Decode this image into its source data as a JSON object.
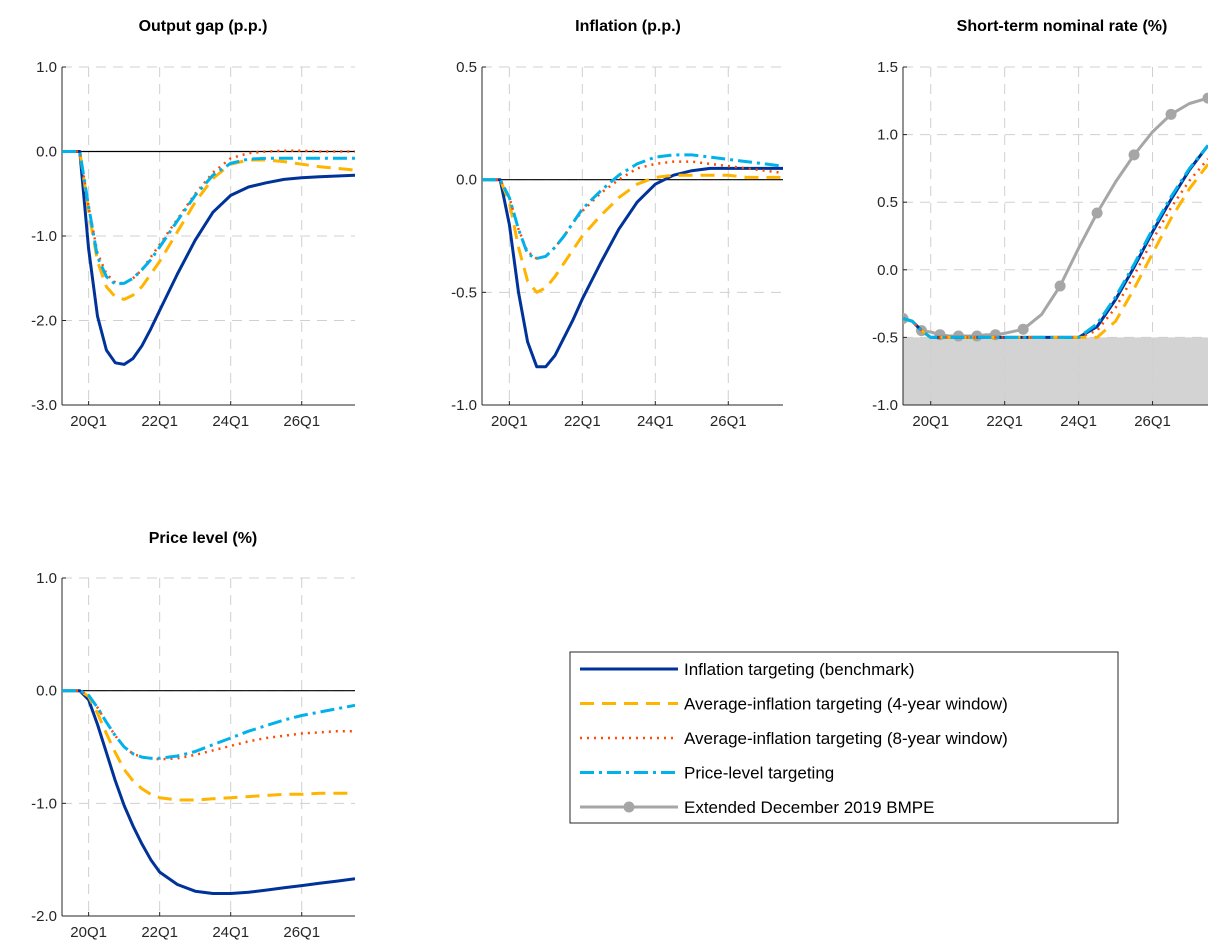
{
  "colors": {
    "inflation_targeting": "#003399",
    "ait_4y": "#FFB400",
    "ait_8y": "#FF4B00",
    "price_level": "#00B1EA",
    "bmpe": "#A6A6A6",
    "elb_shade": "#D3D3D3"
  },
  "legend": [
    {
      "label": "Inflation targeting (benchmark)",
      "key": "it",
      "style": "solid"
    },
    {
      "label": "Average-inflation targeting (4-year window)",
      "key": "ait4",
      "style": "dashed"
    },
    {
      "label": "Average-inflation targeting (8-year window)",
      "key": "ait8",
      "style": "dotted"
    },
    {
      "label": "Price-level targeting",
      "key": "plt",
      "style": "dashdot"
    },
    {
      "label": "Extended December 2019 BMPE",
      "key": "bmpe",
      "style": "solid-marker"
    }
  ],
  "chart_data": [
    {
      "type": "line",
      "title": "Output gap (p.p.)",
      "ylim": [
        -3.0,
        1.0
      ],
      "yticks": [
        "1.0",
        "0.0",
        "-1.0",
        "-2.0",
        "-3.0"
      ],
      "ytick_values": [
        1.0,
        0.0,
        -1.0,
        -2.0,
        -3.0
      ],
      "xlim": [
        2019.25,
        2027.5
      ],
      "xtick_labels": [
        "20Q1",
        "22Q1",
        "24Q1",
        "26Q1"
      ],
      "xtick_values": [
        2020,
        2022,
        2024,
        2026
      ],
      "grid": true,
      "x": [
        2019.25,
        2019.5,
        2019.75,
        2020.0,
        2020.25,
        2020.5,
        2020.75,
        2021.0,
        2021.25,
        2021.5,
        2021.75,
        2022.0,
        2022.5,
        2023.0,
        2023.5,
        2024.0,
        2024.5,
        2025.0,
        2025.5,
        2026.0,
        2026.5,
        2027.0,
        2027.5
      ],
      "series": [
        {
          "name": "Inflation targeting (benchmark)",
          "key": "it",
          "values": [
            0,
            0,
            0,
            -1.15,
            -1.95,
            -2.35,
            -2.5,
            -2.52,
            -2.45,
            -2.3,
            -2.1,
            -1.88,
            -1.45,
            -1.05,
            -0.72,
            -0.52,
            -0.42,
            -0.37,
            -0.33,
            -0.31,
            -0.3,
            -0.29,
            -0.28
          ]
        },
        {
          "name": "Average-inflation targeting (4-year window)",
          "key": "ait4",
          "values": [
            0,
            0,
            0,
            -0.7,
            -1.3,
            -1.6,
            -1.72,
            -1.75,
            -1.7,
            -1.6,
            -1.45,
            -1.3,
            -0.95,
            -0.6,
            -0.32,
            -0.15,
            -0.1,
            -0.1,
            -0.12,
            -0.15,
            -0.18,
            -0.2,
            -0.22
          ]
        },
        {
          "name": "Average-inflation targeting (8-year window)",
          "key": "ait8",
          "values": [
            0,
            0,
            0,
            -0.65,
            -1.2,
            -1.45,
            -1.55,
            -1.56,
            -1.5,
            -1.4,
            -1.25,
            -1.1,
            -0.8,
            -0.5,
            -0.25,
            -0.08,
            -0.02,
            0.0,
            0.01,
            0.01,
            0.0,
            0.0,
            0.0
          ]
        },
        {
          "name": "Price-level targeting",
          "key": "plt",
          "values": [
            0,
            0,
            0,
            -0.65,
            -1.25,
            -1.48,
            -1.57,
            -1.56,
            -1.5,
            -1.4,
            -1.28,
            -1.13,
            -0.82,
            -0.52,
            -0.28,
            -0.14,
            -0.09,
            -0.08,
            -0.08,
            -0.08,
            -0.08,
            -0.08,
            -0.08
          ]
        }
      ]
    },
    {
      "type": "line",
      "title": "Inflation (p.p.)",
      "ylim": [
        -1.0,
        0.5
      ],
      "yticks": [
        "0.5",
        "0.0",
        "-0.5",
        "-1.0"
      ],
      "ytick_values": [
        0.5,
        0.0,
        -0.5,
        -1.0
      ],
      "xlim": [
        2019.25,
        2027.5
      ],
      "xtick_labels": [
        "20Q1",
        "22Q1",
        "24Q1",
        "26Q1"
      ],
      "xtick_values": [
        2020,
        2022,
        2024,
        2026
      ],
      "grid": true,
      "x": [
        2019.25,
        2019.5,
        2019.75,
        2020.0,
        2020.25,
        2020.5,
        2020.75,
        2021.0,
        2021.25,
        2021.5,
        2021.75,
        2022.0,
        2022.5,
        2023.0,
        2023.5,
        2024.0,
        2024.5,
        2025.0,
        2025.5,
        2026.0,
        2026.5,
        2027.0,
        2027.5
      ],
      "series": [
        {
          "name": "Inflation targeting (benchmark)",
          "key": "it",
          "values": [
            0,
            0,
            0,
            -0.2,
            -0.5,
            -0.72,
            -0.83,
            -0.83,
            -0.78,
            -0.7,
            -0.62,
            -0.53,
            -0.37,
            -0.22,
            -0.1,
            -0.02,
            0.02,
            0.04,
            0.05,
            0.05,
            0.05,
            0.05,
            0.05
          ]
        },
        {
          "name": "Average-inflation targeting (4-year window)",
          "key": "ait4",
          "values": [
            0,
            0,
            0,
            -0.1,
            -0.3,
            -0.45,
            -0.5,
            -0.48,
            -0.43,
            -0.37,
            -0.31,
            -0.25,
            -0.16,
            -0.08,
            -0.02,
            0.01,
            0.02,
            0.02,
            0.02,
            0.02,
            0.01,
            0.01,
            0.01
          ]
        },
        {
          "name": "Average-inflation targeting (8-year window)",
          "key": "ait8",
          "values": [
            0,
            0,
            0,
            -0.08,
            -0.22,
            -0.32,
            -0.35,
            -0.34,
            -0.3,
            -0.25,
            -0.19,
            -0.14,
            -0.06,
            0.0,
            0.05,
            0.07,
            0.08,
            0.08,
            0.07,
            0.06,
            0.05,
            0.04,
            0.03
          ]
        },
        {
          "name": "Price-level targeting",
          "key": "plt",
          "values": [
            0,
            0,
            0,
            -0.08,
            -0.22,
            -0.33,
            -0.35,
            -0.34,
            -0.3,
            -0.25,
            -0.19,
            -0.13,
            -0.05,
            0.02,
            0.07,
            0.1,
            0.11,
            0.11,
            0.1,
            0.09,
            0.08,
            0.07,
            0.06
          ]
        }
      ]
    },
    {
      "type": "line",
      "title": "Short-term nominal rate (%)",
      "ylim": [
        -1.0,
        1.5
      ],
      "yticks": [
        "1.5",
        "1.0",
        "0.5",
        "0.0",
        "-0.5",
        "-1.0"
      ],
      "ytick_values": [
        1.5,
        1.0,
        0.5,
        0.0,
        -0.5,
        -1.0
      ],
      "xlim": [
        2019.25,
        2027.5
      ],
      "xtick_labels": [
        "20Q1",
        "22Q1",
        "24Q1",
        "26Q1"
      ],
      "xtick_values": [
        2020,
        2022,
        2024,
        2026
      ],
      "grid": true,
      "elb": -0.5,
      "x": [
        2019.25,
        2019.5,
        2019.75,
        2020.0,
        2020.25,
        2020.5,
        2020.75,
        2021.0,
        2021.25,
        2021.5,
        2021.75,
        2022.0,
        2022.5,
        2023.0,
        2023.5,
        2024.0,
        2024.5,
        2025.0,
        2025.5,
        2026.0,
        2026.5,
        2027.0,
        2027.5
      ],
      "series": [
        {
          "name": "Inflation targeting (benchmark)",
          "key": "it",
          "values": [
            -0.36,
            -0.38,
            -0.45,
            -0.5,
            -0.5,
            -0.5,
            -0.5,
            -0.5,
            -0.5,
            -0.5,
            -0.5,
            -0.5,
            -0.5,
            -0.5,
            -0.5,
            -0.5,
            -0.42,
            -0.22,
            0.02,
            0.28,
            0.52,
            0.74,
            0.92
          ]
        },
        {
          "name": "Average-inflation targeting (4-year window)",
          "key": "ait4",
          "values": [
            -0.36,
            -0.38,
            -0.45,
            -0.5,
            -0.5,
            -0.5,
            -0.5,
            -0.5,
            -0.5,
            -0.5,
            -0.5,
            -0.5,
            -0.5,
            -0.5,
            -0.5,
            -0.5,
            -0.5,
            -0.38,
            -0.14,
            0.12,
            0.38,
            0.6,
            0.78
          ]
        },
        {
          "name": "Average-inflation targeting (8-year window)",
          "key": "ait8",
          "values": [
            -0.36,
            -0.38,
            -0.45,
            -0.5,
            -0.5,
            -0.5,
            -0.5,
            -0.5,
            -0.5,
            -0.5,
            -0.5,
            -0.5,
            -0.5,
            -0.5,
            -0.5,
            -0.5,
            -0.45,
            -0.28,
            -0.04,
            0.22,
            0.46,
            0.66,
            0.82
          ]
        },
        {
          "name": "Price-level targeting",
          "key": "plt",
          "values": [
            -0.36,
            -0.38,
            -0.45,
            -0.5,
            -0.5,
            -0.5,
            -0.5,
            -0.5,
            -0.5,
            -0.5,
            -0.5,
            -0.5,
            -0.5,
            -0.5,
            -0.5,
            -0.5,
            -0.4,
            -0.2,
            0.04,
            0.3,
            0.54,
            0.75,
            0.92
          ]
        },
        {
          "name": "Extended December 2019 BMPE",
          "key": "bmpe",
          "values": [
            -0.36,
            -0.38,
            -0.45,
            -0.46,
            -0.48,
            -0.49,
            -0.49,
            -0.49,
            -0.49,
            -0.48,
            -0.48,
            -0.47,
            -0.44,
            -0.33,
            -0.12,
            0.16,
            0.42,
            0.65,
            0.85,
            1.02,
            1.15,
            1.23,
            1.27
          ]
        }
      ]
    },
    {
      "type": "line",
      "title": "Price level (%)",
      "ylim": [
        -2.0,
        1.0
      ],
      "yticks": [
        "1.0",
        "0.0",
        "-1.0",
        "-2.0"
      ],
      "ytick_values": [
        1.0,
        0.0,
        -1.0,
        -2.0
      ],
      "xlim": [
        2019.25,
        2027.5
      ],
      "xtick_labels": [
        "20Q1",
        "22Q1",
        "24Q1",
        "26Q1"
      ],
      "xtick_values": [
        2020,
        2022,
        2024,
        2026
      ],
      "grid": true,
      "x": [
        2019.25,
        2019.5,
        2019.75,
        2020.0,
        2020.25,
        2020.5,
        2020.75,
        2021.0,
        2021.25,
        2021.5,
        2021.75,
        2022.0,
        2022.5,
        2023.0,
        2023.5,
        2024.0,
        2024.5,
        2025.0,
        2025.5,
        2026.0,
        2026.5,
        2027.0,
        2027.5
      ],
      "series": [
        {
          "name": "Inflation targeting (benchmark)",
          "key": "it",
          "values": [
            0,
            0,
            0,
            -0.08,
            -0.3,
            -0.55,
            -0.8,
            -1.02,
            -1.2,
            -1.36,
            -1.5,
            -1.61,
            -1.72,
            -1.78,
            -1.8,
            -1.8,
            -1.79,
            -1.77,
            -1.75,
            -1.73,
            -1.71,
            -1.69,
            -1.67
          ]
        },
        {
          "name": "Average-inflation targeting (4-year window)",
          "key": "ait4",
          "values": [
            0,
            0,
            0,
            -0.05,
            -0.2,
            -0.38,
            -0.55,
            -0.7,
            -0.8,
            -0.87,
            -0.92,
            -0.95,
            -0.97,
            -0.97,
            -0.96,
            -0.95,
            -0.94,
            -0.93,
            -0.92,
            -0.92,
            -0.91,
            -0.91,
            -0.91
          ]
        },
        {
          "name": "Average-inflation targeting (8-year window)",
          "key": "ait8",
          "values": [
            0,
            0,
            0,
            -0.04,
            -0.15,
            -0.28,
            -0.4,
            -0.5,
            -0.56,
            -0.59,
            -0.6,
            -0.61,
            -0.6,
            -0.57,
            -0.53,
            -0.49,
            -0.45,
            -0.42,
            -0.4,
            -0.38,
            -0.37,
            -0.36,
            -0.36
          ]
        },
        {
          "name": "Price-level targeting",
          "key": "plt",
          "values": [
            0,
            0,
            0,
            -0.04,
            -0.15,
            -0.28,
            -0.4,
            -0.5,
            -0.56,
            -0.59,
            -0.6,
            -0.6,
            -0.58,
            -0.54,
            -0.48,
            -0.42,
            -0.36,
            -0.31,
            -0.26,
            -0.22,
            -0.19,
            -0.16,
            -0.13
          ]
        }
      ]
    }
  ]
}
